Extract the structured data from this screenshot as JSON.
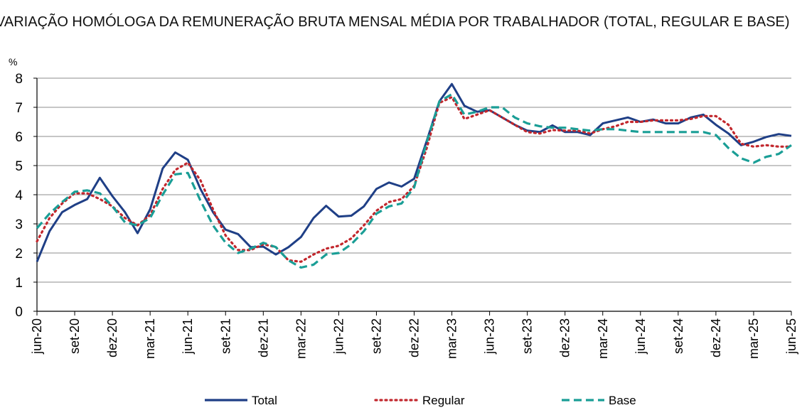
{
  "chart_data": {
    "type": "line",
    "title": "VARIAÇÃO HOMÓLOGA DA REMUNERAÇÃO BRUTA MENSAL MÉDIA POR TRABALHADOR (TOTAL, REGULAR E BASE)",
    "ylabel": "%",
    "ylim": [
      0,
      8
    ],
    "yticks": [
      "0",
      "1",
      "2",
      "3",
      "4",
      "5",
      "6",
      "7",
      "8"
    ],
    "grid": "horizontal",
    "legend_position": "bottom",
    "x_tick_labels": [
      "jun-20",
      "set-20",
      "dez-20",
      "mar-21",
      "jun-21",
      "set-21",
      "dez-21",
      "mar-22",
      "jun-22",
      "set-22",
      "dez-22",
      "mar-23",
      "jun-23",
      "set-23",
      "dez-23",
      "mar-24",
      "jun-24",
      "set-24",
      "dez-24",
      "mar-25",
      "jun-25"
    ],
    "x": [
      "jun-20",
      "jul-20",
      "ago-20",
      "set-20",
      "out-20",
      "nov-20",
      "dez-20",
      "jan-21",
      "fev-21",
      "mar-21",
      "abr-21",
      "mai-21",
      "jun-21",
      "jul-21",
      "ago-21",
      "set-21",
      "out-21",
      "nov-21",
      "dez-21",
      "jan-22",
      "fev-22",
      "mar-22",
      "abr-22",
      "mai-22",
      "jun-22",
      "jul-22",
      "ago-22",
      "set-22",
      "out-22",
      "nov-22",
      "dez-22",
      "jan-23",
      "fev-23",
      "mar-23",
      "abr-23",
      "mai-23",
      "jun-23",
      "jul-23",
      "ago-23",
      "set-23",
      "out-23",
      "nov-23",
      "dez-23",
      "jan-24",
      "fev-24",
      "mar-24",
      "abr-24",
      "mai-24",
      "jun-24",
      "jul-24",
      "ago-24",
      "set-24",
      "out-24",
      "nov-24",
      "dez-24",
      "jan-25",
      "fev-25",
      "mar-25",
      "abr-25",
      "mai-25",
      "jun-25"
    ],
    "series": [
      {
        "name": "Total",
        "color": "#1f3f86",
        "style": "solid",
        "values": [
          1.7,
          2.75,
          3.4,
          3.65,
          3.85,
          4.58,
          3.95,
          3.4,
          2.68,
          3.5,
          4.9,
          5.45,
          5.2,
          4.2,
          3.4,
          2.8,
          2.65,
          2.2,
          2.22,
          1.95,
          2.2,
          2.55,
          3.2,
          3.62,
          3.25,
          3.28,
          3.6,
          4.2,
          4.42,
          4.28,
          4.55,
          5.85,
          7.2,
          7.8,
          7.05,
          6.85,
          6.9,
          6.65,
          6.4,
          6.2,
          6.15,
          6.38,
          6.15,
          6.15,
          6.05,
          6.45,
          6.55,
          6.65,
          6.5,
          6.58,
          6.45,
          6.45,
          6.65,
          6.75,
          6.4,
          6.1,
          5.7,
          5.82,
          5.98,
          6.08,
          6.02
        ]
      },
      {
        "name": "Regular",
        "color": "#c2272d",
        "style": "dotted",
        "values": [
          2.4,
          3.2,
          3.7,
          4.05,
          4.05,
          3.85,
          3.6,
          3.2,
          2.95,
          3.3,
          4.2,
          4.85,
          5.1,
          4.5,
          3.5,
          2.6,
          2.1,
          2.1,
          2.3,
          2.2,
          1.75,
          1.7,
          1.95,
          2.15,
          2.25,
          2.5,
          2.95,
          3.45,
          3.75,
          3.85,
          4.3,
          5.6,
          7.15,
          7.35,
          6.6,
          6.75,
          6.9,
          6.65,
          6.4,
          6.15,
          6.1,
          6.22,
          6.2,
          6.2,
          6.1,
          6.25,
          6.35,
          6.5,
          6.5,
          6.55,
          6.55,
          6.55,
          6.6,
          6.7,
          6.7,
          6.4,
          5.75,
          5.65,
          5.7,
          5.65,
          5.65
        ]
      },
      {
        "name": "Base",
        "color": "#1a9e96",
        "style": "dashed",
        "values": [
          2.85,
          3.35,
          3.75,
          4.1,
          4.15,
          4.05,
          3.6,
          3.05,
          2.95,
          3.2,
          4.0,
          4.7,
          4.75,
          3.8,
          2.95,
          2.35,
          2.0,
          2.15,
          2.35,
          2.2,
          1.75,
          1.5,
          1.6,
          1.95,
          2.0,
          2.3,
          2.75,
          3.35,
          3.6,
          3.7,
          4.25,
          5.8,
          7.2,
          7.45,
          6.75,
          6.85,
          7.0,
          7.0,
          6.65,
          6.45,
          6.35,
          6.3,
          6.3,
          6.25,
          6.2,
          6.25,
          6.25,
          6.2,
          6.15,
          6.15,
          6.15,
          6.15,
          6.15,
          6.15,
          6.05,
          5.6,
          5.25,
          5.1,
          5.3,
          5.4,
          5.7
        ]
      }
    ]
  }
}
